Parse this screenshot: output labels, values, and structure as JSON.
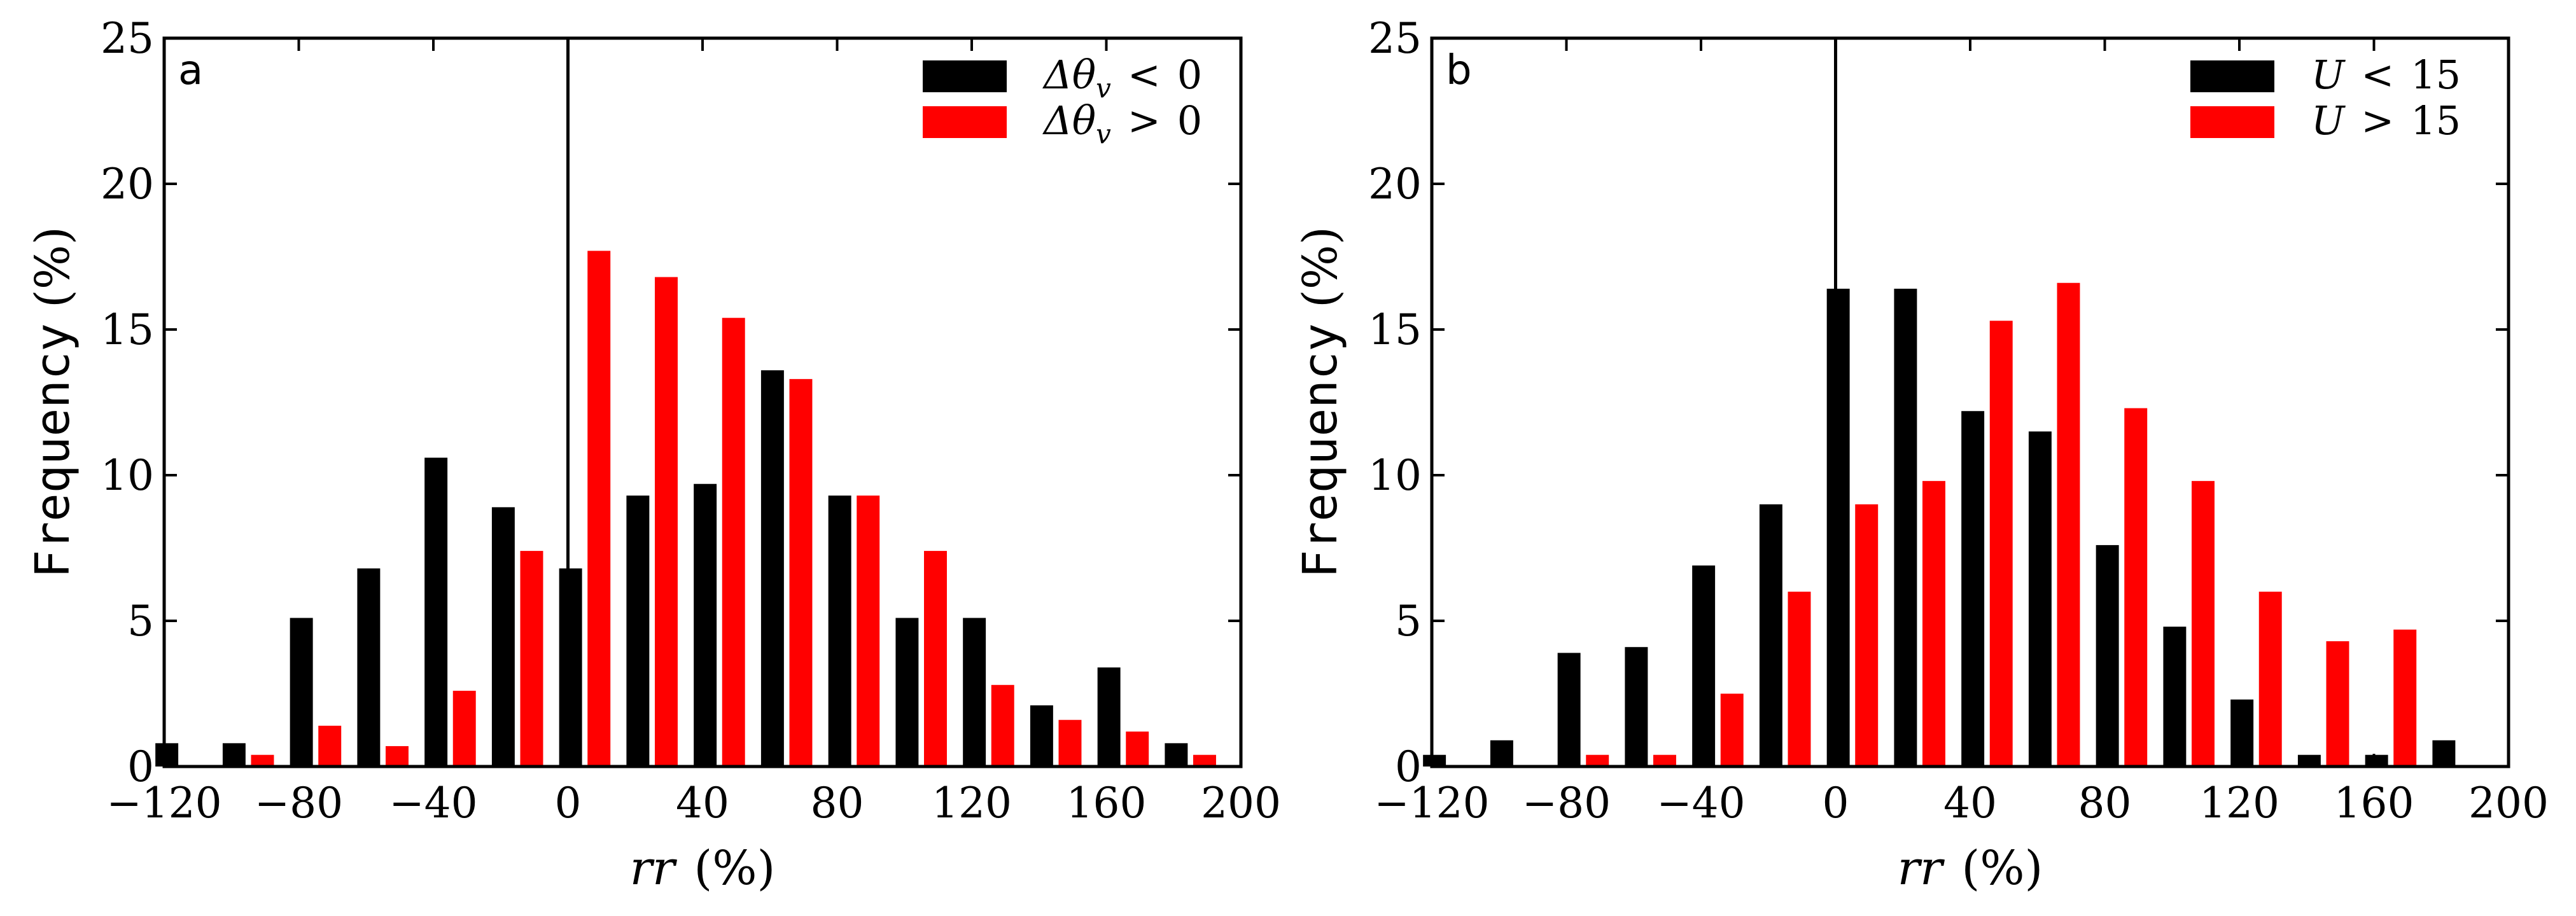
{
  "chart_data": [
    {
      "type": "bar",
      "panel_label": "a",
      "xlim": [
        -120,
        200
      ],
      "ylim": [
        0,
        25
      ],
      "xticks": [
        -120,
        -80,
        -40,
        0,
        40,
        80,
        120,
        160,
        200
      ],
      "yticks": [
        0,
        5,
        10,
        15,
        20,
        25
      ],
      "xlabel": {
        "var": "rr",
        "unit": "(%)"
      },
      "ylabel": {
        "word": "Frequency",
        "unit": "(%)"
      },
      "zero_line": 0,
      "bin_width": 20,
      "categories": [
        -115,
        -95,
        -75,
        -55,
        -35,
        -15,
        5,
        25,
        45,
        65,
        85,
        105,
        125,
        145,
        165,
        185
      ],
      "series": [
        {
          "name": "Δθv < 0",
          "legend": {
            "lhs": "Δθ",
            "sub": "v",
            "op": "<",
            "rhs": "0"
          },
          "color": "#000000",
          "values": [
            0.8,
            0.8,
            5.1,
            6.8,
            10.6,
            8.9,
            6.8,
            9.3,
            9.7,
            13.6,
            9.3,
            5.1,
            5.1,
            2.1,
            3.4,
            0.8
          ]
        },
        {
          "name": "Δθv > 0",
          "legend": {
            "lhs": "Δθ",
            "sub": "v",
            "op": ">",
            "rhs": "0"
          },
          "color": "#ff0000",
          "values": [
            0.0,
            0.4,
            1.4,
            0.7,
            2.6,
            7.4,
            17.7,
            16.8,
            15.4,
            13.3,
            9.3,
            7.4,
            2.8,
            1.6,
            1.2,
            0.4
          ]
        }
      ]
    },
    {
      "type": "bar",
      "panel_label": "b",
      "xlim": [
        -120,
        200
      ],
      "ylim": [
        0,
        25
      ],
      "xticks": [
        -120,
        -80,
        -40,
        0,
        40,
        80,
        120,
        160,
        200
      ],
      "yticks": [
        0,
        5,
        10,
        15,
        20,
        25
      ],
      "xlabel": {
        "var": "rr",
        "unit": "(%)"
      },
      "ylabel": {
        "word": "Frequency",
        "unit": "(%)"
      },
      "zero_line": 0,
      "bin_width": 20,
      "categories": [
        -115,
        -95,
        -75,
        -55,
        -35,
        -15,
        5,
        25,
        45,
        65,
        85,
        105,
        125,
        145,
        165,
        185
      ],
      "series": [
        {
          "name": "U < 15",
          "legend": {
            "lhs": "U",
            "sub": "",
            "op": "<",
            "rhs": "15"
          },
          "color": "#000000",
          "values": [
            0.4,
            0.9,
            3.9,
            4.1,
            6.9,
            9.0,
            16.4,
            16.4,
            12.2,
            11.5,
            7.6,
            4.8,
            2.3,
            0.4,
            0.4,
            0.9
          ]
        },
        {
          "name": "U > 15",
          "legend": {
            "lhs": "U",
            "sub": "",
            "op": ">",
            "rhs": "15"
          },
          "color": "#ff0000",
          "values": [
            0.0,
            0.0,
            0.4,
            0.4,
            2.5,
            6.0,
            9.0,
            9.8,
            15.3,
            16.6,
            12.3,
            9.8,
            6.0,
            4.3,
            4.7,
            0.0
          ]
        }
      ]
    }
  ]
}
